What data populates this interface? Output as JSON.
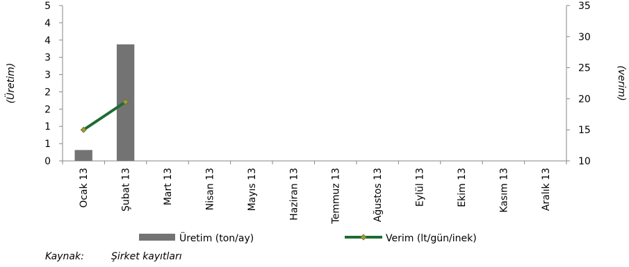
{
  "chart_data": {
    "type": "bar",
    "categories": [
      "Ocak 13",
      "Şubat 13",
      "Mart 13",
      "Nisan 13",
      "Mayıs 13",
      "Haziran 13",
      "Temmuz 13",
      "Ağustos 13",
      "Eylül 13",
      "Ekim 13",
      "Kasım 13",
      "Aralık 13"
    ],
    "series": [
      {
        "name": "Üretim (ton/ay)",
        "type": "bar",
        "axis": "left",
        "values": [
          0.35,
          3.75,
          null,
          null,
          null,
          null,
          null,
          null,
          null,
          null,
          null,
          null
        ],
        "color": "#737373"
      },
      {
        "name": "Verim (lt/gün/inek)",
        "type": "line",
        "axis": "right",
        "values": [
          15.0,
          19.5,
          null,
          null,
          null,
          null,
          null,
          null,
          null,
          null,
          null,
          null
        ],
        "color": "#1e6b33",
        "marker_color": "#9b9b3a"
      }
    ],
    "ylabel": "(Üretim)",
    "y2label": "(verim)",
    "ylim": [
      0,
      5
    ],
    "y2lim": [
      10,
      35
    ],
    "yticks": [
      "0",
      "1",
      "1",
      "2",
      "2",
      "3",
      "3",
      "4",
      "4",
      "5"
    ],
    "y2ticks": [
      "10",
      "15",
      "20",
      "25",
      "30",
      "35"
    ],
    "grid": false,
    "legend": "bottom"
  },
  "source": {
    "label": "Kaynak:",
    "value": "Şirket kayıtları"
  }
}
